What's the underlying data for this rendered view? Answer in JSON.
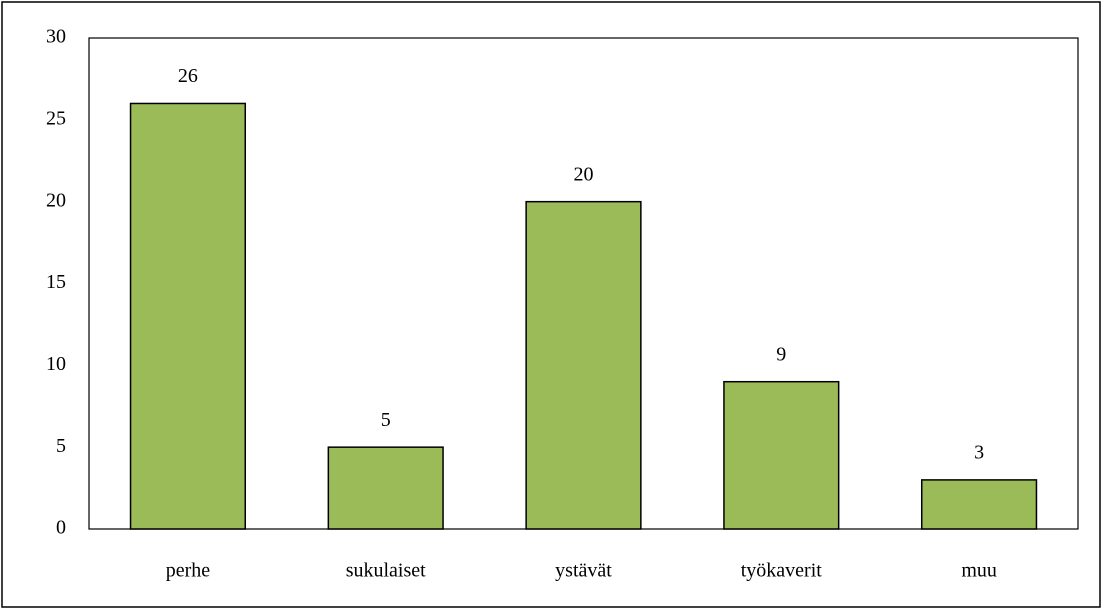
{
  "chart_data": {
    "type": "bar",
    "categories": [
      "perhe",
      "sukulaiset",
      "ystävät",
      "työkaverit",
      "muu"
    ],
    "values": [
      26,
      5,
      20,
      9,
      3
    ],
    "color": "#9bbb59",
    "ylim": [
      0,
      30
    ],
    "yticks": [
      0,
      5,
      10,
      15,
      20,
      25,
      30
    ],
    "grid": false
  }
}
